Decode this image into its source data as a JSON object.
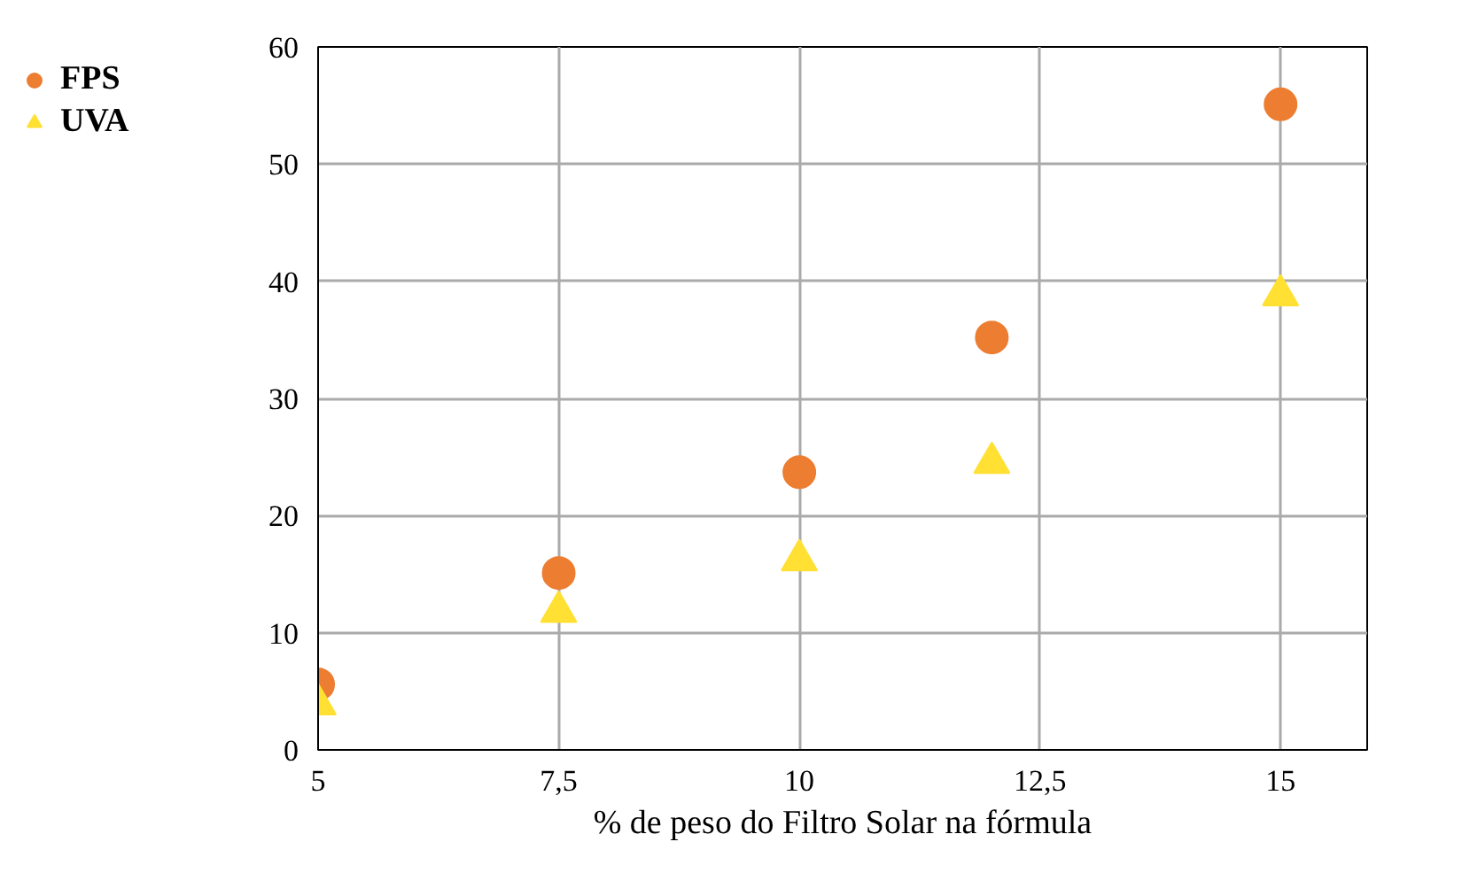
{
  "chart_data": {
    "type": "scatter",
    "xlabel": "% de peso do Filtro Solar na fórmula",
    "x": [
      5,
      7.5,
      10,
      12,
      15
    ],
    "series": [
      {
        "name": "FPS",
        "color": "#ed7d31",
        "marker": "circle",
        "values": [
          5.6,
          15.1,
          23.7,
          35.2,
          55.1
        ]
      },
      {
        "name": "UVA",
        "color": "#ffe033",
        "marker": "triangle",
        "values": [
          3.9,
          11.8,
          16.2,
          24.5,
          38.8
        ]
      }
    ],
    "xlim": [
      5,
      15.9
    ],
    "xticks": [
      5,
      {
        "value": 7.5,
        "label": "7,5"
      },
      10,
      {
        "value": 12.5,
        "label": "12,5"
      },
      15
    ],
    "ylim": [
      0,
      60
    ],
    "yticks": [
      0,
      10,
      20,
      30,
      40,
      50,
      60
    ],
    "grid": true,
    "legend": "top left"
  }
}
